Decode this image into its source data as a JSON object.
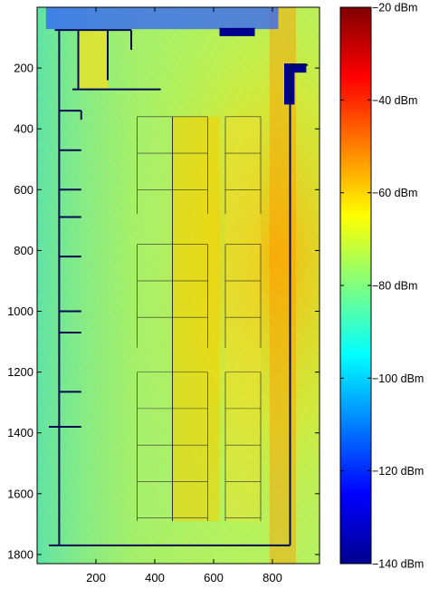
{
  "chart_data": [
    {
      "type": "heatmap",
      "title": "",
      "xlabel": "",
      "ylabel": "",
      "xlim": [
        0,
        960
      ],
      "ylim": [
        1830,
        0
      ],
      "y_reversed": true,
      "xticks": [
        200,
        400,
        600,
        800
      ],
      "yticks": [
        200,
        400,
        600,
        800,
        1000,
        1200,
        1400,
        1600,
        1800
      ],
      "grid": false,
      "description_of_field": "received signal power map over a floor plan",
      "walls": [
        {
          "x": [
            60,
            240
          ],
          "y": [
            75,
            75
          ]
        },
        {
          "x": [
            240,
            320
          ],
          "y": [
            75,
            75
          ]
        },
        {
          "x": [
            240,
            240
          ],
          "y": [
            75,
            240
          ]
        },
        {
          "x": [
            320,
            320
          ],
          "y": [
            75,
            140
          ]
        },
        {
          "x": [
            140,
            140
          ],
          "y": [
            75,
            270
          ]
        },
        {
          "x": [
            120,
            420
          ],
          "y": [
            270,
            270
          ]
        },
        {
          "x": [
            860,
            860
          ],
          "y": [
            190,
            1770
          ]
        },
        {
          "x": [
            860,
            920
          ],
          "y": [
            190,
            190
          ]
        },
        {
          "x": [
            75,
            75
          ],
          "y": [
            75,
            1770
          ]
        },
        {
          "x": [
            75,
            150
          ],
          "y": [
            340,
            340
          ]
        },
        {
          "x": [
            150,
            150
          ],
          "y": [
            340,
            370
          ]
        },
        {
          "x": [
            75,
            150
          ],
          "y": [
            470,
            470
          ]
        },
        {
          "x": [
            75,
            150
          ],
          "y": [
            600,
            600
          ]
        },
        {
          "x": [
            75,
            150
          ],
          "y": [
            690,
            690
          ]
        },
        {
          "x": [
            75,
            150
          ],
          "y": [
            820,
            820
          ]
        },
        {
          "x": [
            75,
            150
          ],
          "y": [
            1000,
            1000
          ]
        },
        {
          "x": [
            75,
            150
          ],
          "y": [
            1070,
            1070
          ]
        },
        {
          "x": [
            75,
            150
          ],
          "y": [
            1265,
            1265
          ]
        },
        {
          "x": [
            40,
            150
          ],
          "y": [
            1380,
            1380
          ]
        },
        {
          "x": [
            40,
            860
          ],
          "y": [
            1770,
            1770
          ]
        }
      ]
    },
    {
      "type": "colorbar",
      "colormap": "jet",
      "range": [
        -140,
        -20
      ],
      "unit": "dBm",
      "ticks": [
        -20,
        -40,
        -60,
        -80,
        -100,
        -120,
        -140
      ],
      "tick_labels": [
        "−20 dBm",
        "−40 dBm",
        "−60 dBm",
        "−80 dBm",
        "−100 dBm",
        "−120 dBm",
        "−140 dBm"
      ]
    }
  ]
}
